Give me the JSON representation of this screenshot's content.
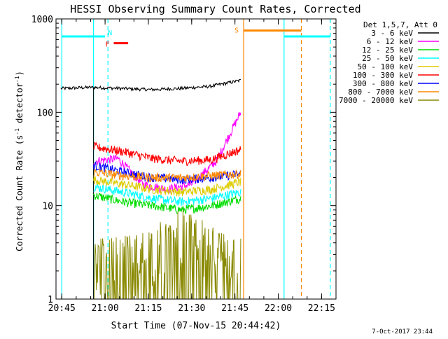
{
  "chart_data": {
    "type": "line",
    "title": "HESSI Observing Summary Count Rates, Corrected",
    "xlabel": "Start Time (07-Nov-15 20:44:42)",
    "ylabel_main": "Corrected Count Rate (s",
    "ylabel_sup1": "-1",
    "ylabel_mid": " detector",
    "ylabel_sup2": "-1",
    "ylabel_end": ")",
    "yscale": "log",
    "ylim": [
      1,
      1000
    ],
    "xlim_minutes": [
      -2,
      95
    ],
    "x_tick_labels": [
      "20:45",
      "21:00",
      "21:15",
      "21:30",
      "21:45",
      "22:00",
      "22:15"
    ],
    "y_tick_labels": [
      "1",
      "10",
      "100",
      "1000"
    ],
    "legend_header": "Det 1,5,7, Att 0",
    "legend_position": "top-right",
    "timestamp": "7-Oct-2017 23:44",
    "series": [
      {
        "name": "3 - 6 keV",
        "color": "#000000",
        "start": "20:44:42",
        "end": "21:47",
        "values_approx": [
          180,
          185,
          180,
          175,
          180,
          190,
          220
        ]
      },
      {
        "name": "6 - 12 keV",
        "color": "#ff00ff",
        "start": "20:56",
        "end": "21:47",
        "values_approx": [
          30,
          32,
          17,
          15,
          17,
          30,
          100
        ]
      },
      {
        "name": "12 - 25 keV",
        "color": "#00dd00",
        "start": "20:56",
        "end": "21:47",
        "values_approx": [
          13,
          11,
          10,
          9,
          10,
          12
        ]
      },
      {
        "name": "25 - 50 keV",
        "color": "#00ffff",
        "start": "20:56",
        "end": "21:47",
        "values_approx": [
          16,
          14,
          12,
          11,
          12,
          14
        ]
      },
      {
        "name": "50 - 100 keV",
        "color": "#ddcc00",
        "start": "20:56",
        "end": "21:47",
        "values_approx": [
          19,
          17,
          15,
          14,
          15,
          18
        ]
      },
      {
        "name": "100 - 300 keV",
        "color": "#ff0000",
        "start": "20:56",
        "end": "21:47",
        "values_approx": [
          43,
          38,
          32,
          30,
          31,
          40
        ]
      },
      {
        "name": "300 - 800 keV",
        "color": "#0000ff",
        "start": "20:56",
        "end": "21:47",
        "values_approx": [
          27,
          23,
          20,
          19,
          20,
          22
        ]
      },
      {
        "name": "800 - 7000 keV",
        "color": "#ff8800",
        "start": "20:56",
        "end": "21:47",
        "values_approx": [
          23,
          21,
          20,
          20,
          21,
          22
        ]
      },
      {
        "name": "7000 - 20000 keV",
        "color": "#888800",
        "start": "20:56",
        "end": "21:47",
        "values_approx": [
          1.5,
          1.5,
          2,
          3,
          2,
          1.5
        ]
      }
    ],
    "flags": [
      {
        "label": "N",
        "color": "#00ffff",
        "intervals": [
          [
            "20:45",
            "21:00"
          ],
          [
            "22:02",
            "22:18"
          ]
        ],
        "value": 650
      },
      {
        "label": "F",
        "color": "#ff0000",
        "intervals": [
          [
            "21:03",
            "21:08"
          ]
        ],
        "value": 550
      },
      {
        "label": "S",
        "color": "#ff8800",
        "intervals": [
          [
            "21:48",
            "22:08"
          ]
        ],
        "value": 750
      }
    ],
    "vertical_markers": [
      {
        "time": "20:45",
        "color": "#00ffff",
        "style": "solid"
      },
      {
        "time": "20:56",
        "color": "#00ffff",
        "style": "solid"
      },
      {
        "time": "21:01",
        "color": "#00ffff",
        "style": "dashed"
      },
      {
        "time": "21:48",
        "color": "#ff8800",
        "style": "solid"
      },
      {
        "time": "22:02",
        "color": "#00ffff",
        "style": "solid"
      },
      {
        "time": "22:08",
        "color": "#ff8800",
        "style": "dashed"
      },
      {
        "time": "22:18",
        "color": "#00ffff",
        "style": "dashed"
      }
    ]
  }
}
